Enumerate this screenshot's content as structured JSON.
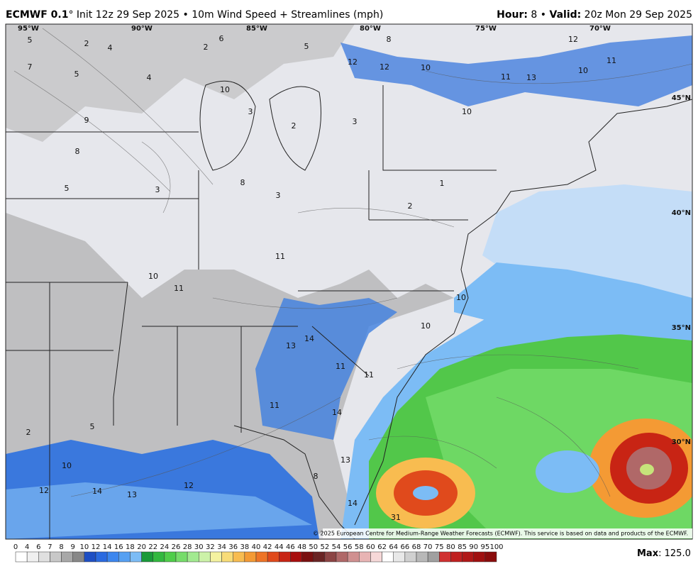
{
  "header": {
    "model": "ECMWF 0.1",
    "title_rest": "° Init 12z 29 Sep 2025 • 10m Wind Speed + Streamlines (mph)",
    "hour_label": "Hour:",
    "hour": " 8 • ",
    "valid_label": "Valid:",
    "valid": " 20z Mon 29 Sep 2025"
  },
  "map": {
    "lon_labels": [
      "95°W",
      "90°W",
      "85°W",
      "80°W",
      "75°W",
      "70°W"
    ],
    "lat_labels": [
      "45°N",
      "40°N",
      "35°N",
      "30°N"
    ],
    "wind_labels": [
      5,
      2,
      4,
      2,
      6,
      5,
      8,
      12,
      7,
      5,
      4,
      10,
      3,
      2,
      3,
      9,
      8,
      5,
      3,
      8,
      3,
      2,
      1,
      12,
      12,
      10,
      11,
      13,
      10,
      11,
      10,
      10,
      11,
      11,
      13,
      14,
      11,
      11,
      14,
      13,
      14,
      14,
      13,
      12,
      12,
      10,
      31,
      10,
      10,
      5,
      2,
      8,
      11
    ],
    "credit": "© 2025 European Centre for Medium-Range Weather Forecasts (ECMWF). This service is based on data and products of the ECMWF."
  },
  "colorbar": {
    "levels": [
      0,
      4,
      6,
      7,
      8,
      9,
      10,
      12,
      14,
      16,
      18,
      20,
      22,
      24,
      26,
      28,
      30,
      32,
      34,
      36,
      38,
      40,
      42,
      44,
      46,
      48,
      50,
      52,
      54,
      56,
      58,
      60,
      62,
      64,
      66,
      68,
      70,
      75,
      80,
      85,
      90,
      95,
      100
    ],
    "colors": [
      "#ffffff",
      "#f0f0f0",
      "#e0e0e0",
      "#c8c8c8",
      "#a8a8a8",
      "#888888",
      "#1e4fc4",
      "#2a6ae0",
      "#3c86ee",
      "#56a0f2",
      "#7cbcf5",
      "#1a9a3a",
      "#32b83f",
      "#4fcd4a",
      "#76dc6a",
      "#a2ea90",
      "#ccf2a8",
      "#f4f2a0",
      "#f8dc78",
      "#f8bc50",
      "#f49a34",
      "#ee7426",
      "#e04a1c",
      "#c82414",
      "#a80e0e",
      "#7a1010",
      "#6a2424",
      "#8c4444",
      "#b06868",
      "#d09090",
      "#e8b4b4",
      "#f6d8d8",
      "#ffffff",
      "#e8e8e8",
      "#d0d0d0",
      "#b8b8b8",
      "#a0a0a0",
      "#d03030",
      "#c02020",
      "#b01818",
      "#a01010",
      "#8a0c0c"
    ],
    "max_label": "Max",
    "max_value": "125.0"
  }
}
